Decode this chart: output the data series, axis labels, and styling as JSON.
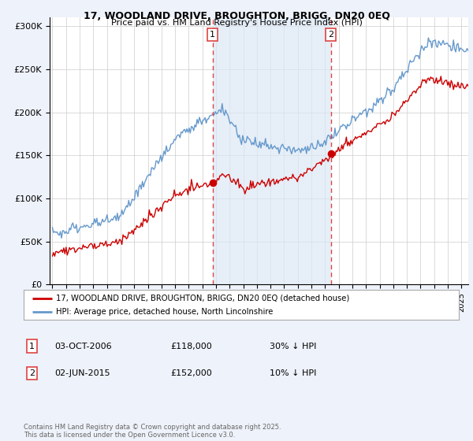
{
  "title_line1": "17, WOODLAND DRIVE, BROUGHTON, BRIGG, DN20 0EQ",
  "title_line2": "Price paid vs. HM Land Registry's House Price Index (HPI)",
  "ylabel_ticks": [
    "£0",
    "£50K",
    "£100K",
    "£150K",
    "£200K",
    "£250K",
    "£300K"
  ],
  "ytick_values": [
    0,
    50000,
    100000,
    150000,
    200000,
    250000,
    300000
  ],
  "ylim": [
    0,
    310000
  ],
  "xlim_start": 1994.8,
  "xlim_end": 2025.5,
  "sale1_date": 2006.75,
  "sale1_price": 118000,
  "sale1_label": "1",
  "sale2_date": 2015.42,
  "sale2_price": 152000,
  "sale2_label": "2",
  "legend_entry1": "17, WOODLAND DRIVE, BROUGHTON, BRIGG, DN20 0EQ (detached house)",
  "legend_entry2": "HPI: Average price, detached house, North Lincolnshire",
  "table_row1": [
    "1",
    "03-OCT-2006",
    "£118,000",
    "30% ↓ HPI"
  ],
  "table_row2": [
    "2",
    "02-JUN-2015",
    "£152,000",
    "10% ↓ HPI"
  ],
  "footer": "Contains HM Land Registry data © Crown copyright and database right 2025.\nThis data is licensed under the Open Government Licence v3.0.",
  "color_red": "#cc0000",
  "color_blue": "#6699cc",
  "color_shade": "#dce8f5",
  "color_dashed": "#dd4444",
  "background_color": "#eef2fa",
  "plot_bg": "#ffffff"
}
